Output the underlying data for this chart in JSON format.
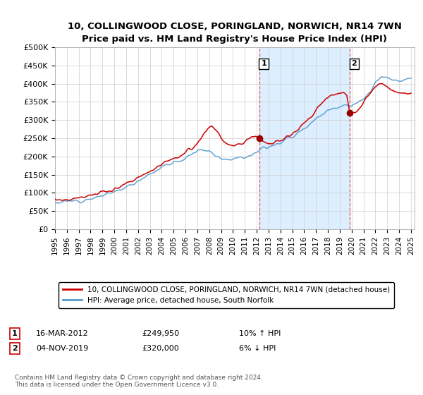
{
  "title": "10, COLLINGWOOD CLOSE, PORINGLAND, NORWICH, NR14 7WN",
  "subtitle": "Price paid vs. HM Land Registry's House Price Index (HPI)",
  "legend_line1": "10, COLLINGWOOD CLOSE, PORINGLAND, NORWICH, NR14 7WN (detached house)",
  "legend_line2": "HPI: Average price, detached house, South Norfolk",
  "annotation1_date": "16-MAR-2012",
  "annotation1_price": "£249,950",
  "annotation1_hpi": "10% ↑ HPI",
  "annotation2_date": "04-NOV-2019",
  "annotation2_price": "£320,000",
  "annotation2_hpi": "6% ↓ HPI",
  "footer": "Contains HM Land Registry data © Crown copyright and database right 2024.\nThis data is licensed under the Open Government Licence v3.0.",
  "red_color": "#cc0000",
  "blue_color": "#5599cc",
  "background_color": "#ffffff",
  "shaded_color": "#ddeeff",
  "ylim": [
    0,
    500000
  ],
  "yticks": [
    0,
    50000,
    100000,
    150000,
    200000,
    250000,
    300000,
    350000,
    400000,
    450000,
    500000
  ],
  "ytick_labels": [
    "£0",
    "£50K",
    "£100K",
    "£150K",
    "£200K",
    "£250K",
    "£300K",
    "£350K",
    "£400K",
    "£450K",
    "£500K"
  ],
  "xtick_years": [
    1995,
    1996,
    1997,
    1998,
    1999,
    2000,
    2001,
    2002,
    2003,
    2004,
    2005,
    2006,
    2007,
    2008,
    2009,
    2010,
    2011,
    2012,
    2013,
    2014,
    2015,
    2016,
    2017,
    2018,
    2019,
    2020,
    2021,
    2022,
    2023,
    2024,
    2025
  ],
  "sale1_x": 2012.21,
  "sale1_y": 249950,
  "sale2_x": 2019.84,
  "sale2_y": 320000,
  "vline1_x": 2012.21,
  "vline2_x": 2019.84,
  "xlim_left": 1995.0,
  "xlim_right": 2025.3
}
